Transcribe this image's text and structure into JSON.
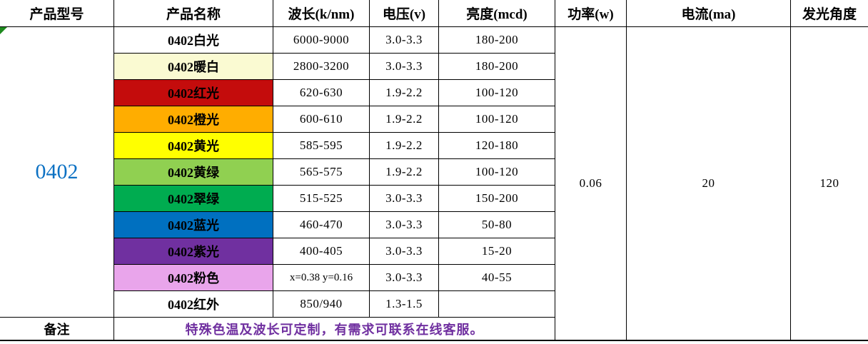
{
  "table": {
    "headers": [
      "产品型号",
      "产品名称",
      "波长(k/nm)",
      "电压(v)",
      "亮度(mcd)",
      "功率(w)",
      "电流(ma)",
      "发光角度"
    ],
    "model": "0402",
    "rows": [
      {
        "name": "0402白光",
        "wavelength": "6000-9000",
        "voltage": "3.0-3.3",
        "brightness": "180-200",
        "color": "#FFFFFF"
      },
      {
        "name": "0402暖白",
        "wavelength": "2800-3200",
        "voltage": "3.0-3.3",
        "brightness": "180-200",
        "color": "#FAFAD2"
      },
      {
        "name": "0402红光",
        "wavelength": "620-630",
        "voltage": "1.9-2.2",
        "brightness": "100-120",
        "color": "#C40C0C"
      },
      {
        "name": "0402橙光",
        "wavelength": "600-610",
        "voltage": "1.9-2.2",
        "brightness": "100-120",
        "color": "#FFAD00"
      },
      {
        "name": "0402黄光",
        "wavelength": "585-595",
        "voltage": "1.9-2.2",
        "brightness": "120-180",
        "color": "#FFFF00"
      },
      {
        "name": "0402黄绿",
        "wavelength": "565-575",
        "voltage": "1.9-2.2",
        "brightness": "100-120",
        "color": "#90D051"
      },
      {
        "name": "0402翠绿",
        "wavelength": "515-525",
        "voltage": "3.0-3.3",
        "brightness": "150-200",
        "color": "#00AC50"
      },
      {
        "name": "0402蓝光",
        "wavelength": "460-470",
        "voltage": "3.0-3.3",
        "brightness": "50-80",
        "color": "#0070C0"
      },
      {
        "name": "0402紫光",
        "wavelength": "400-405",
        "voltage": "3.0-3.3",
        "brightness": "15-20",
        "color": "#7030A0"
      },
      {
        "name": "0402粉色",
        "wavelength": "x=0.38 y=0.16",
        "voltage": "3.0-3.3",
        "brightness": "40-55",
        "color": "#E9A5EB"
      },
      {
        "name": "0402红外",
        "wavelength": "850/940",
        "voltage": "1.3-1.5",
        "brightness": "",
        "color": "#FFFFFF"
      }
    ],
    "power": "0.06",
    "current": "20",
    "angle": "120",
    "remark_label": "备注",
    "remark_text": "特殊色温及波长可定制，有需求可联系在线客服。",
    "colors": {
      "model_text": "#0C71C3",
      "remark_text": "#7030A0",
      "error_indicator": "#1E8A1E"
    }
  }
}
